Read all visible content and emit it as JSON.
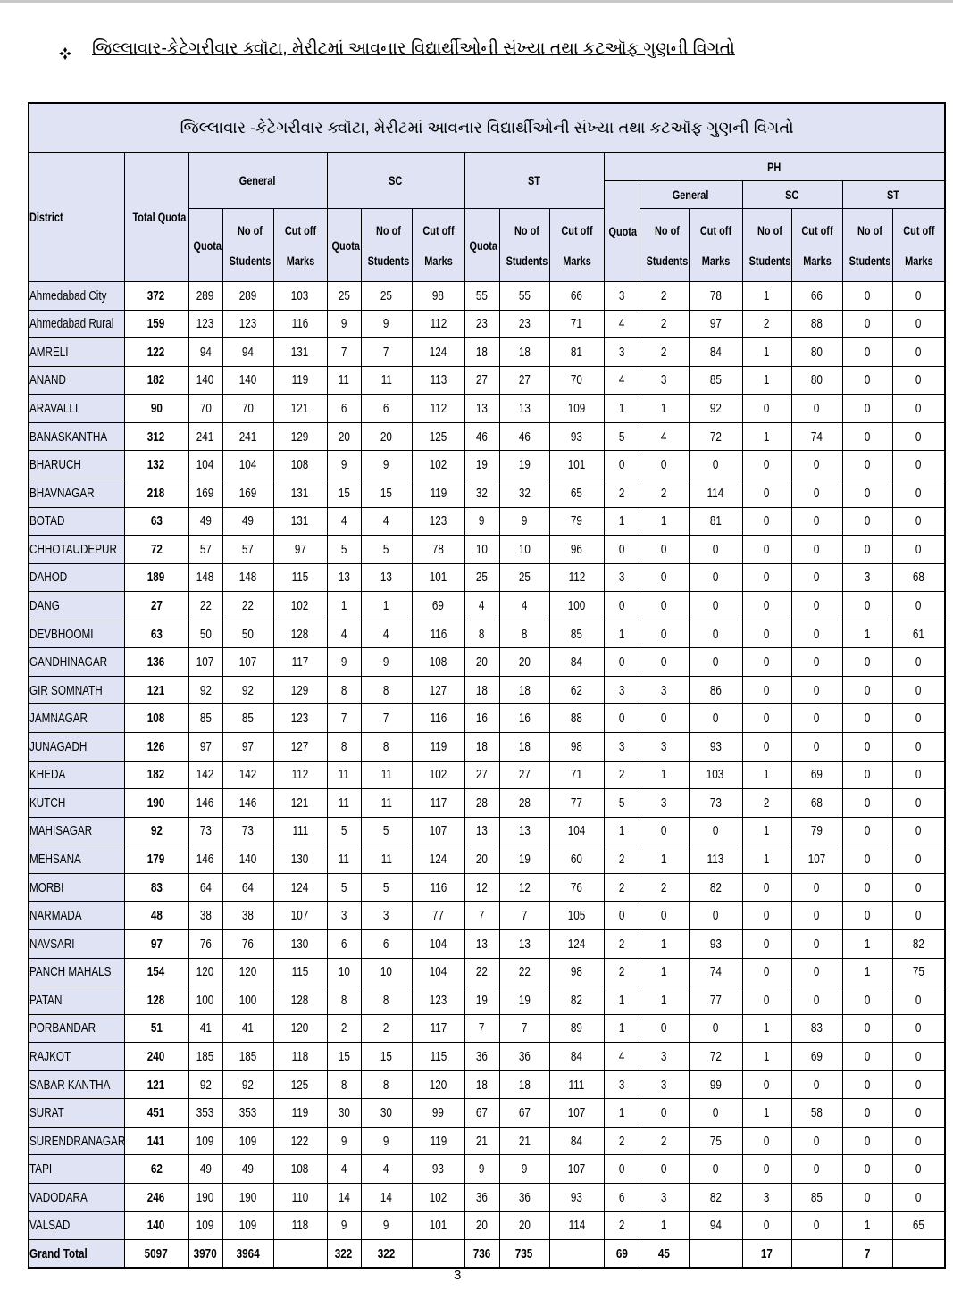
{
  "heading": "જિલ્લાવાર-કેટેગરીવાર ક્વૉટા, મેરીટમાં આવનાર વિદ્યાર્થીઓની સંખ્યા તથા કટઑફ ગુણની વિગતો",
  "table": {
    "title": "જિલ્લાવાર -કેટેગરીવાર ક્વૉટા, મેરીટમાં આવનાર વિદ્યાર્થીઓની સંખ્યા તથા કટઑફ ગુણની વિગતો",
    "district_header": "District",
    "total_quota_header": "Total Quota",
    "groups": [
      "General",
      "SC",
      "ST",
      "PH"
    ],
    "ph_groups": [
      "General",
      "SC",
      "ST"
    ],
    "columns": [
      "Quota",
      "No of Students",
      "Cut off Marks",
      "Quota",
      "No of Students",
      "Cut off Marks",
      "Quota",
      "No of Students",
      "Cut off Marks",
      "Quota",
      "No of Students",
      "Cut off Marks",
      "No of Students",
      "Cut off Marks",
      "No of Students",
      "Cut off Marks"
    ],
    "rows": [
      [
        "Ahmedabad City",
        372,
        289,
        289,
        103,
        25,
        25,
        98,
        55,
        55,
        66,
        3,
        2,
        78,
        1,
        66,
        0,
        0
      ],
      [
        "Ahmedabad Rural",
        159,
        123,
        123,
        116,
        9,
        9,
        112,
        23,
        23,
        71,
        4,
        2,
        97,
        2,
        88,
        0,
        0
      ],
      [
        "AMRELI",
        122,
        94,
        94,
        131,
        7,
        7,
        124,
        18,
        18,
        81,
        3,
        2,
        84,
        1,
        80,
        0,
        0
      ],
      [
        "ANAND",
        182,
        140,
        140,
        119,
        11,
        11,
        113,
        27,
        27,
        70,
        4,
        3,
        85,
        1,
        80,
        0,
        0
      ],
      [
        "ARAVALLI",
        90,
        70,
        70,
        121,
        6,
        6,
        112,
        13,
        13,
        109,
        1,
        1,
        92,
        0,
        0,
        0,
        0
      ],
      [
        "BANASKANTHA",
        312,
        241,
        241,
        129,
        20,
        20,
        125,
        46,
        46,
        93,
        5,
        4,
        72,
        1,
        74,
        0,
        0
      ],
      [
        "BHARUCH",
        132,
        104,
        104,
        108,
        9,
        9,
        102,
        19,
        19,
        101,
        0,
        0,
        0,
        0,
        0,
        0,
        0
      ],
      [
        "BHAVNAGAR",
        218,
        169,
        169,
        131,
        15,
        15,
        119,
        32,
        32,
        65,
        2,
        2,
        114,
        0,
        0,
        0,
        0
      ],
      [
        "BOTAD",
        63,
        49,
        49,
        131,
        4,
        4,
        123,
        9,
        9,
        79,
        1,
        1,
        81,
        0,
        0,
        0,
        0
      ],
      [
        "CHHOTAUDEPUR",
        72,
        57,
        57,
        97,
        5,
        5,
        78,
        10,
        10,
        96,
        0,
        0,
        0,
        0,
        0,
        0,
        0
      ],
      [
        "DAHOD",
        189,
        148,
        148,
        115,
        13,
        13,
        101,
        25,
        25,
        112,
        3,
        0,
        0,
        0,
        0,
        3,
        68
      ],
      [
        "DANG",
        27,
        22,
        22,
        102,
        1,
        1,
        69,
        4,
        4,
        100,
        0,
        0,
        0,
        0,
        0,
        0,
        0
      ],
      [
        "DEVBHOOMI",
        63,
        50,
        50,
        128,
        4,
        4,
        116,
        8,
        8,
        85,
        1,
        0,
        0,
        0,
        0,
        1,
        61
      ],
      [
        "GANDHINAGAR",
        136,
        107,
        107,
        117,
        9,
        9,
        108,
        20,
        20,
        84,
        0,
        0,
        0,
        0,
        0,
        0,
        0
      ],
      [
        "GIR SOMNATH",
        121,
        92,
        92,
        129,
        8,
        8,
        127,
        18,
        18,
        62,
        3,
        3,
        86,
        0,
        0,
        0,
        0
      ],
      [
        "JAMNAGAR",
        108,
        85,
        85,
        123,
        7,
        7,
        116,
        16,
        16,
        88,
        0,
        0,
        0,
        0,
        0,
        0,
        0
      ],
      [
        "JUNAGADH",
        126,
        97,
        97,
        127,
        8,
        8,
        119,
        18,
        18,
        98,
        3,
        3,
        93,
        0,
        0,
        0,
        0
      ],
      [
        "KHEDA",
        182,
        142,
        142,
        112,
        11,
        11,
        102,
        27,
        27,
        71,
        2,
        1,
        103,
        1,
        69,
        0,
        0
      ],
      [
        "KUTCH",
        190,
        146,
        146,
        121,
        11,
        11,
        117,
        28,
        28,
        77,
        5,
        3,
        73,
        2,
        68,
        0,
        0
      ],
      [
        "MAHISAGAR",
        92,
        73,
        73,
        111,
        5,
        5,
        107,
        13,
        13,
        104,
        1,
        0,
        0,
        1,
        79,
        0,
        0
      ],
      [
        "MEHSANA",
        179,
        146,
        140,
        130,
        11,
        11,
        124,
        20,
        19,
        60,
        2,
        1,
        113,
        1,
        107,
        0,
        0
      ],
      [
        "MORBI",
        83,
        64,
        64,
        124,
        5,
        5,
        116,
        12,
        12,
        76,
        2,
        2,
        82,
        0,
        0,
        0,
        0
      ],
      [
        "NARMADA",
        48,
        38,
        38,
        107,
        3,
        3,
        77,
        7,
        7,
        105,
        0,
        0,
        0,
        0,
        0,
        0,
        0
      ],
      [
        "NAVSARI",
        97,
        76,
        76,
        130,
        6,
        6,
        104,
        13,
        13,
        124,
        2,
        1,
        93,
        0,
        0,
        1,
        82
      ],
      [
        "PANCH MAHALS",
        154,
        120,
        120,
        115,
        10,
        10,
        104,
        22,
        22,
        98,
        2,
        1,
        74,
        0,
        0,
        1,
        75
      ],
      [
        "PATAN",
        128,
        100,
        100,
        128,
        8,
        8,
        123,
        19,
        19,
        82,
        1,
        1,
        77,
        0,
        0,
        0,
        0
      ],
      [
        "PORBANDAR",
        51,
        41,
        41,
        120,
        2,
        2,
        117,
        7,
        7,
        89,
        1,
        0,
        0,
        1,
        83,
        0,
        0
      ],
      [
        "RAJKOT",
        240,
        185,
        185,
        118,
        15,
        15,
        115,
        36,
        36,
        84,
        4,
        3,
        72,
        1,
        69,
        0,
        0
      ],
      [
        "SABAR KANTHA",
        121,
        92,
        92,
        125,
        8,
        8,
        120,
        18,
        18,
        111,
        3,
        3,
        99,
        0,
        0,
        0,
        0
      ],
      [
        "SURAT",
        451,
        353,
        353,
        119,
        30,
        30,
        99,
        67,
        67,
        107,
        1,
        0,
        0,
        1,
        58,
        0,
        0
      ],
      [
        "SURENDRANAGAR",
        141,
        109,
        109,
        122,
        9,
        9,
        119,
        21,
        21,
        84,
        2,
        2,
        75,
        0,
        0,
        0,
        0
      ],
      [
        "TAPI",
        62,
        49,
        49,
        108,
        4,
        4,
        93,
        9,
        9,
        107,
        0,
        0,
        0,
        0,
        0,
        0,
        0
      ],
      [
        "VADODARA",
        246,
        190,
        190,
        110,
        14,
        14,
        102,
        36,
        36,
        93,
        6,
        3,
        82,
        3,
        85,
        0,
        0
      ],
      [
        "VALSAD",
        140,
        109,
        109,
        118,
        9,
        9,
        101,
        20,
        20,
        114,
        2,
        1,
        94,
        0,
        0,
        1,
        65
      ],
      [
        "Grand Total",
        5097,
        3970,
        3964,
        null,
        322,
        322,
        null,
        736,
        735,
        null,
        69,
        45,
        null,
        17,
        null,
        7,
        null
      ]
    ]
  },
  "page_number": "3"
}
